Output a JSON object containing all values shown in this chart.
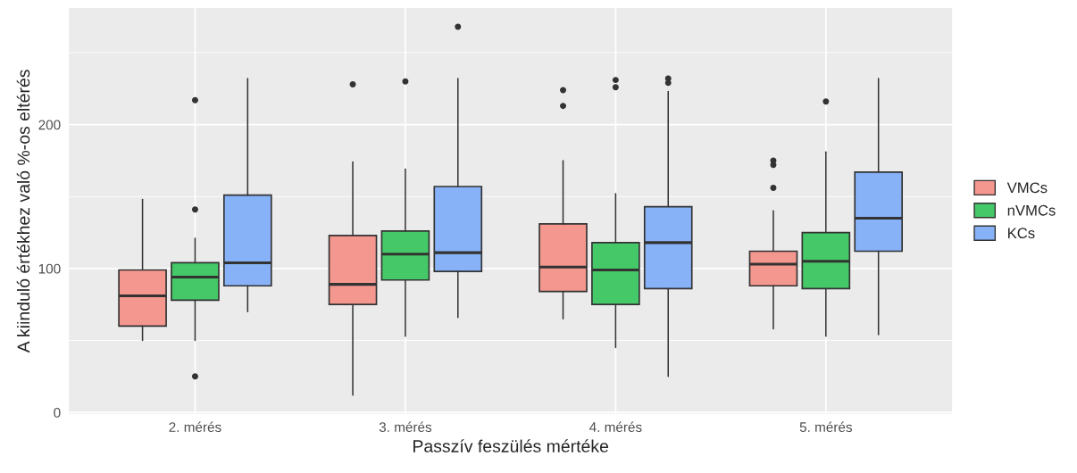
{
  "chart_data": {
    "type": "box",
    "xlabel": "Passzív feszülés mértéke",
    "ylabel": "A kiinduló értékhez való %-os eltérés",
    "categories": [
      "2. mérés",
      "3. mérés",
      "4. mérés",
      "5. mérés"
    ],
    "ylim": [
      -1,
      281
    ],
    "yticks": [
      0,
      100,
      200
    ],
    "grid": true,
    "legend": "right",
    "series": [
      {
        "name": "VMCs",
        "color": "#f4978f",
        "boxes": [
          {
            "low": 50,
            "q1": 60,
            "median": 81,
            "q3": 99,
            "high": 148
          },
          {
            "low": 12,
            "q1": 75,
            "median": 89,
            "q3": 123,
            "high": 174,
            "outliers": [
              228
            ]
          },
          {
            "low": 65,
            "q1": 84,
            "median": 101,
            "q3": 131,
            "high": 175,
            "outliers": [
              224,
              213
            ]
          },
          {
            "low": 58,
            "q1": 88,
            "median": 103,
            "q3": 112,
            "high": 140,
            "outliers": [
              175,
              172,
              156
            ]
          }
        ]
      },
      {
        "name": "nVMCs",
        "color": "#45c867",
        "boxes": [
          {
            "low": 50,
            "q1": 78,
            "median": 94,
            "q3": 104,
            "high": 121,
            "outliers": [
              217,
              141,
              25
            ]
          },
          {
            "low": 53,
            "q1": 92,
            "median": 110,
            "q3": 126,
            "high": 169,
            "outliers": [
              230
            ]
          },
          {
            "low": 45,
            "q1": 75,
            "median": 99,
            "q3": 118,
            "high": 152,
            "outliers": [
              231,
              226
            ]
          },
          {
            "low": 53,
            "q1": 86,
            "median": 105,
            "q3": 125,
            "high": 181,
            "outliers": [
              216
            ]
          }
        ]
      },
      {
        "name": "KCs",
        "color": "#87b2f8",
        "boxes": [
          {
            "low": 70,
            "q1": 88,
            "median": 104,
            "q3": 151,
            "high": 232
          },
          {
            "low": 66,
            "q1": 98,
            "median": 111,
            "q3": 157,
            "high": 232,
            "outliers": [
              268
            ]
          },
          {
            "low": 25,
            "q1": 86,
            "median": 118,
            "q3": 143,
            "high": 223,
            "outliers": [
              232,
              229
            ]
          },
          {
            "low": 54,
            "q1": 112,
            "median": 135,
            "q3": 167,
            "high": 232
          }
        ]
      }
    ]
  }
}
